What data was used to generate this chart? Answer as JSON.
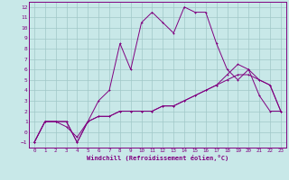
{
  "background_color": "#c8e8e8",
  "grid_color": "#a0c8c8",
  "line_color": "#800080",
  "spine_color": "#800080",
  "xlim": [
    -0.5,
    23.5
  ],
  "ylim": [
    -1.5,
    12.5
  ],
  "xticks": [
    0,
    1,
    2,
    3,
    4,
    5,
    6,
    7,
    8,
    9,
    10,
    11,
    12,
    13,
    14,
    15,
    16,
    17,
    18,
    19,
    20,
    21,
    22,
    23
  ],
  "yticks": [
    -1,
    0,
    1,
    2,
    3,
    4,
    5,
    6,
    7,
    8,
    9,
    10,
    11,
    12
  ],
  "xlabel": "Windchill (Refroidissement éolien,°C)",
  "curve1_x": [
    0,
    1,
    2,
    3,
    4,
    5,
    6,
    7,
    8,
    9,
    10,
    11,
    12,
    13,
    14,
    15,
    16,
    17,
    18,
    19,
    20,
    21,
    22,
    23
  ],
  "curve1_y": [
    -1.0,
    1.0,
    1.0,
    1.0,
    -1.0,
    1.0,
    3.0,
    4.0,
    8.5,
    6.0,
    10.5,
    11.5,
    10.5,
    9.5,
    12.0,
    11.5,
    11.5,
    8.5,
    6.0,
    5.0,
    6.0,
    3.5,
    2.0,
    2.0
  ],
  "curve2_x": [
    0,
    1,
    2,
    3,
    4,
    5,
    6,
    7,
    8,
    9,
    10,
    11,
    12,
    13,
    14,
    15,
    16,
    17,
    18,
    19,
    20,
    21,
    22,
    23
  ],
  "curve2_y": [
    -1.0,
    1.0,
    1.0,
    0.5,
    -0.5,
    1.0,
    1.5,
    1.5,
    2.0,
    2.0,
    2.0,
    2.0,
    2.5,
    2.5,
    3.0,
    3.5,
    4.0,
    4.5,
    5.5,
    6.5,
    6.0,
    5.0,
    4.5,
    2.0
  ],
  "curve3_x": [
    0,
    1,
    2,
    3,
    4,
    5,
    6,
    7,
    8,
    9,
    10,
    11,
    12,
    13,
    14,
    15,
    16,
    17,
    18,
    19,
    20,
    21,
    22,
    23
  ],
  "curve3_y": [
    -1.0,
    1.0,
    1.0,
    1.0,
    -1.0,
    1.0,
    1.5,
    1.5,
    2.0,
    2.0,
    2.0,
    2.0,
    2.5,
    2.5,
    3.0,
    3.5,
    4.0,
    4.5,
    5.0,
    5.5,
    5.5,
    5.0,
    4.5,
    2.0
  ]
}
